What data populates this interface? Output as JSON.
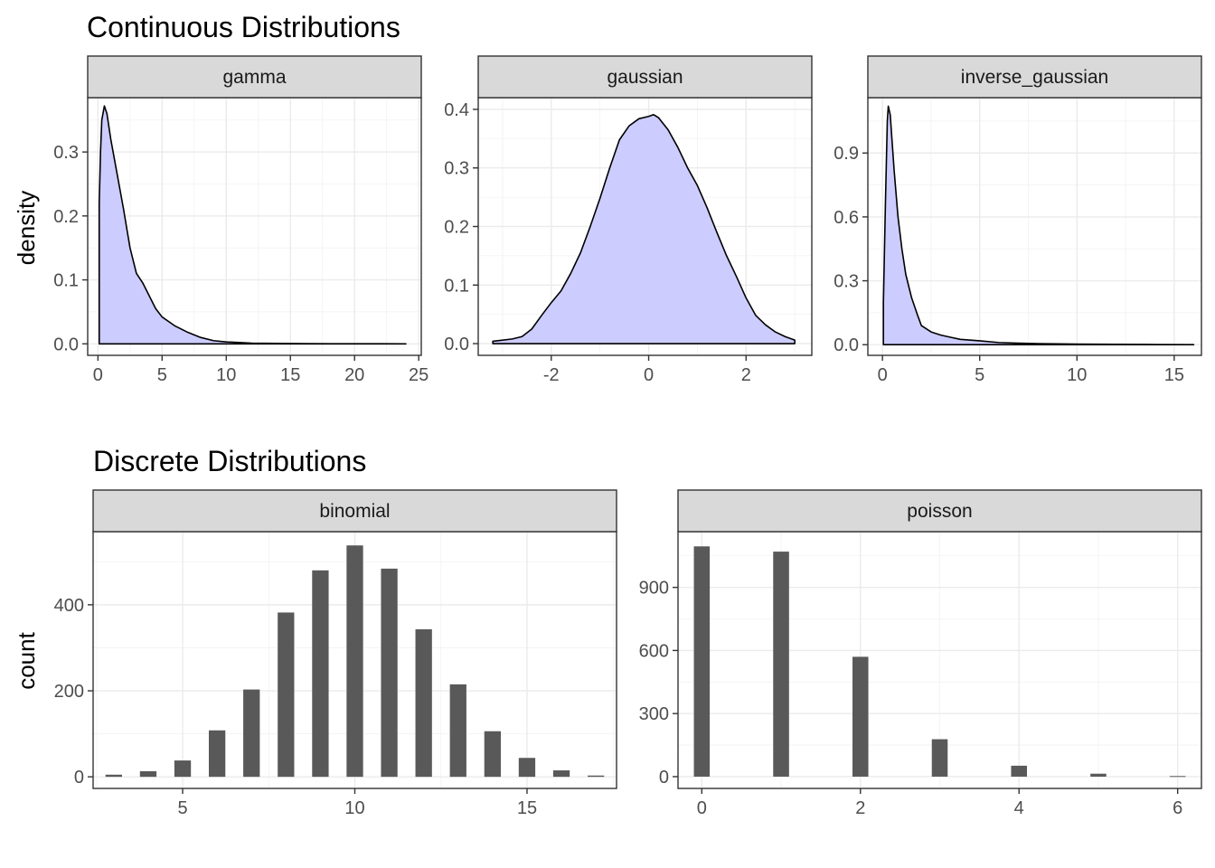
{
  "titles": {
    "continuous": "Continuous Distributions",
    "discrete": "Discrete Distributions"
  },
  "ylabels": {
    "continuous": "density",
    "discrete": "count"
  },
  "colors": {
    "density_fill": "#ccccff",
    "density_line": "#000000",
    "bar_fill": "#595959",
    "strip_bg": "#d9d9d9"
  },
  "chart_data": [
    {
      "type": "area",
      "title": "gamma",
      "xlim": [
        -0.8,
        25.2
      ],
      "ylim": [
        -0.018,
        0.385
      ],
      "x_ticks": [
        0,
        5,
        10,
        15,
        20,
        25
      ],
      "x_tick_labels": [
        "0",
        "5",
        "10",
        "15",
        "20",
        "25"
      ],
      "y_ticks": [
        0,
        0.1,
        0.2,
        0.3
      ],
      "y_tick_labels": [
        "0.0",
        "0.1",
        "0.2",
        "0.3"
      ],
      "x": [
        0.1,
        0.2,
        0.3,
        0.5,
        0.7,
        1.0,
        1.5,
        2.0,
        2.5,
        3.0,
        3.5,
        4.0,
        4.5,
        5.0,
        5.5,
        6.0,
        7.0,
        8.0,
        9.0,
        10.0,
        11.0,
        12.0,
        14.0,
        16.0,
        18.0,
        20.0,
        22.0,
        24.0
      ],
      "y": [
        0.22,
        0.3,
        0.35,
        0.372,
        0.36,
        0.32,
        0.265,
        0.21,
        0.15,
        0.11,
        0.095,
        0.075,
        0.055,
        0.042,
        0.035,
        0.028,
        0.018,
        0.01,
        0.005,
        0.003,
        0.002,
        0.001,
        0.0006,
        0.0004,
        0.0002,
        0.0001,
        0.0001,
        0.0
      ]
    },
    {
      "type": "area",
      "title": "gaussian",
      "xlim": [
        -3.5,
        3.35
      ],
      "ylim": [
        -0.02,
        0.42
      ],
      "x_ticks": [
        -2,
        0,
        2
      ],
      "x_tick_labels": [
        "-2",
        "0",
        "2"
      ],
      "y_ticks": [
        0,
        0.1,
        0.2,
        0.3,
        0.4
      ],
      "y_tick_labels": [
        "0.0",
        "0.1",
        "0.2",
        "0.3",
        "0.4"
      ],
      "x": [
        -3.2,
        -3.0,
        -2.8,
        -2.6,
        -2.4,
        -2.2,
        -2.0,
        -1.8,
        -1.6,
        -1.4,
        -1.2,
        -1.0,
        -0.8,
        -0.6,
        -0.4,
        -0.2,
        0.0,
        0.1,
        0.2,
        0.4,
        0.6,
        0.8,
        1.0,
        1.2,
        1.4,
        1.6,
        1.8,
        2.0,
        2.2,
        2.4,
        2.6,
        2.8,
        3.0
      ],
      "y": [
        0.004,
        0.006,
        0.008,
        0.012,
        0.025,
        0.048,
        0.07,
        0.09,
        0.12,
        0.155,
        0.2,
        0.248,
        0.3,
        0.348,
        0.372,
        0.384,
        0.388,
        0.391,
        0.386,
        0.365,
        0.335,
        0.3,
        0.27,
        0.232,
        0.19,
        0.15,
        0.115,
        0.078,
        0.048,
        0.032,
        0.02,
        0.012,
        0.006
      ]
    },
    {
      "type": "area",
      "title": "inverse_gaussian",
      "xlim": [
        -0.75,
        16.4
      ],
      "ylim": [
        -0.05,
        1.16
      ],
      "x_ticks": [
        0,
        5,
        10,
        15
      ],
      "x_tick_labels": [
        "0",
        "5",
        "10",
        "15"
      ],
      "y_ticks": [
        0,
        0.3,
        0.6,
        0.9
      ],
      "y_tick_labels": [
        "0.0",
        "0.3",
        "0.6",
        "0.9"
      ],
      "x": [
        0.05,
        0.15,
        0.25,
        0.3,
        0.4,
        0.5,
        0.6,
        0.8,
        1.0,
        1.2,
        1.5,
        1.8,
        2.0,
        2.5,
        3.0,
        3.5,
        4.0,
        5.0,
        6.0,
        7.0,
        8.0,
        10.0,
        12.0,
        14.0,
        16.0
      ],
      "y": [
        0.2,
        0.65,
        1.05,
        1.12,
        1.08,
        0.95,
        0.82,
        0.6,
        0.45,
        0.33,
        0.22,
        0.14,
        0.09,
        0.06,
        0.045,
        0.035,
        0.025,
        0.018,
        0.01,
        0.007,
        0.005,
        0.003,
        0.002,
        0.001,
        0.0
      ]
    },
    {
      "type": "bar",
      "title": "binomial",
      "xlim": [
        2.4,
        17.6
      ],
      "ylim": [
        -27,
        570
      ],
      "x_ticks": [
        5,
        10,
        15
      ],
      "x_tick_labels": [
        "5",
        "10",
        "15"
      ],
      "y_ticks": [
        0,
        200,
        400
      ],
      "y_tick_labels": [
        "0",
        "200",
        "400"
      ],
      "bar_width": 0.48,
      "x": [
        3,
        4,
        5,
        6,
        7,
        8,
        9,
        10,
        11,
        12,
        13,
        14,
        15,
        16,
        17
      ],
      "values": [
        5,
        13,
        38,
        108,
        203,
        382,
        480,
        538,
        484,
        343,
        215,
        106,
        44,
        15,
        3
      ]
    },
    {
      "type": "bar",
      "title": "poisson",
      "xlim": [
        -0.3,
        6.3
      ],
      "ylim": [
        -56,
        1165
      ],
      "x_ticks": [
        0,
        2,
        4,
        6
      ],
      "x_tick_labels": [
        "0",
        "2",
        "4",
        "6"
      ],
      "y_ticks": [
        0,
        300,
        600,
        900
      ],
      "y_tick_labels": [
        "0",
        "300",
        "600",
        "900"
      ],
      "bar_width": 0.2,
      "x": [
        0,
        1,
        2,
        3,
        4,
        5,
        6
      ],
      "values": [
        1095,
        1070,
        570,
        178,
        52,
        14,
        3
      ]
    }
  ]
}
